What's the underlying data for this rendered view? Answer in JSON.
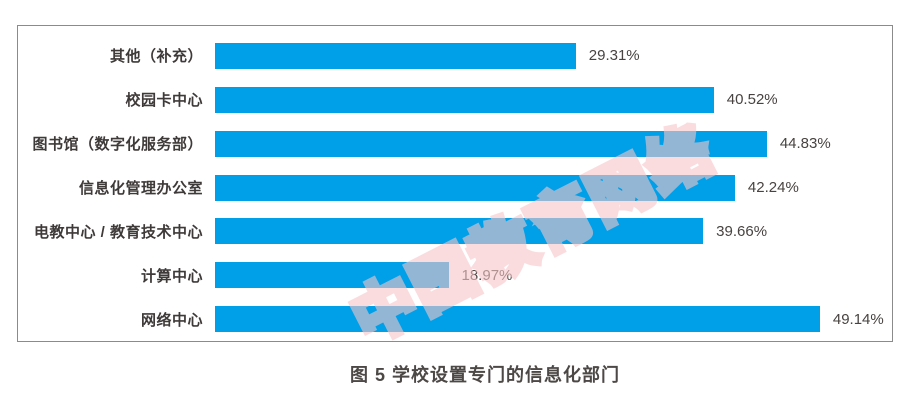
{
  "figure": {
    "caption": "图 5 学校设置专门的信息化部门",
    "watermark": "中国教育网络"
  },
  "colors": {
    "bar": "#00a0e9",
    "label": "#3e3a39",
    "value": "#474340",
    "frame_border": "#8b8b8b",
    "caption": "#4c4846",
    "watermark": "rgba(247,196,200,0.6)"
  },
  "chart_data": {
    "type": "bar",
    "orientation": "horizontal",
    "title": "图 5 学校设置专门的信息化部门",
    "categories": [
      "其他（补充）",
      "校园卡中心",
      "图书馆（数字化服务部）",
      "信息化管理办公室",
      "电教中心 / 教育技术中心",
      "计算中心",
      "网络中心"
    ],
    "values": [
      29.31,
      40.52,
      44.83,
      42.24,
      39.66,
      18.97,
      49.14
    ],
    "value_labels": [
      "29.31%",
      "40.52%",
      "44.83%",
      "42.24%",
      "39.66%",
      "18.97%",
      "49.14%"
    ],
    "bar_color": "#00a0e9",
    "xlabel": "",
    "ylabel": "",
    "xlim": [
      0,
      55
    ],
    "grid": false,
    "legend": "none",
    "data_labels": "outside-end"
  }
}
